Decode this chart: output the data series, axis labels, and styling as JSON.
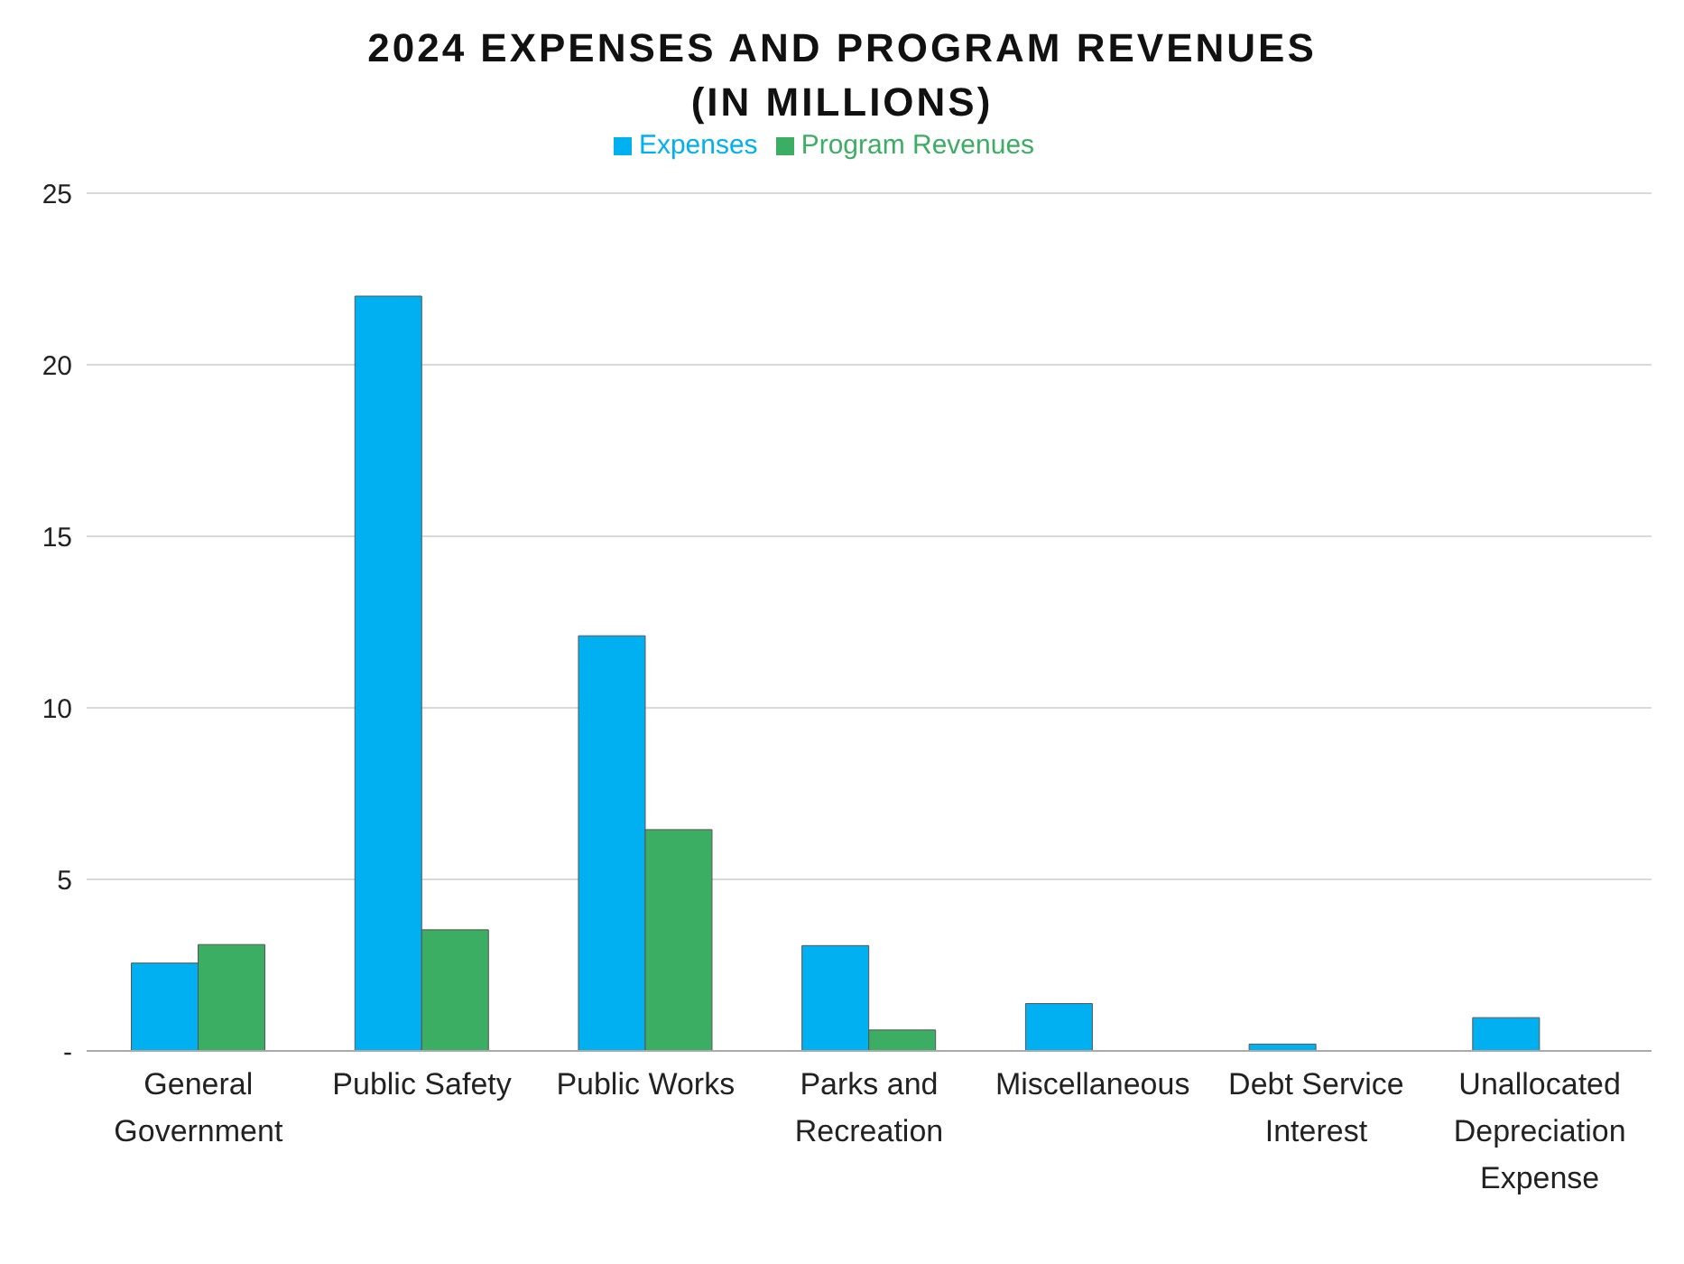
{
  "chart_data": {
    "type": "bar",
    "title": "2024 EXPENSES AND PROGRAM REVENUES\n(IN MILLIONS)",
    "categories": [
      "General Government",
      "Public Safety",
      "Public Works",
      "Parks and Recreation",
      "Miscellaneous",
      "Debt Service Interest",
      "Unallocated Depreciation Expense"
    ],
    "series": [
      {
        "name": "Expenses",
        "color": "#00b0f0",
        "values": [
          2.56,
          22.0,
          12.1,
          3.07,
          1.38,
          0.2,
          0.97
        ]
      },
      {
        "name": "Program Revenues",
        "color": "#3cae63",
        "values": [
          3.1,
          3.53,
          6.45,
          0.61,
          null,
          null,
          null
        ]
      }
    ],
    "ylim": [
      0,
      25
    ],
    "yticks": [
      {
        "value": 0,
        "label": "-"
      },
      5,
      10,
      15,
      20,
      25
    ],
    "grid": "y",
    "legend": "top"
  }
}
